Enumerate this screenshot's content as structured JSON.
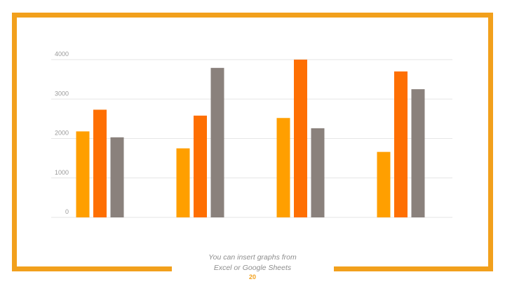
{
  "slide": {
    "caption_line1": "You can insert graphs from",
    "caption_line2": "Excel or Google Sheets",
    "page_number": "20",
    "frame_color": "#f2a01c"
  },
  "chart_data": {
    "type": "bar",
    "categories": [
      "",
      "",
      "",
      ""
    ],
    "series": [
      {
        "values": [
          2180,
          1750,
          2520,
          1660
        ],
        "color": "#ff9f00"
      },
      {
        "values": [
          2730,
          2580,
          4000,
          3700
        ],
        "color": "#fe6f02"
      },
      {
        "values": [
          2030,
          3790,
          2260,
          3250
        ],
        "color": "#8a817c"
      }
    ],
    "yticks": [
      0,
      1000,
      2000,
      3000,
      4000
    ],
    "ylim": [
      0,
      4000
    ],
    "grid": true,
    "legend": "none",
    "title": "",
    "xlabel": "",
    "ylabel": ""
  }
}
